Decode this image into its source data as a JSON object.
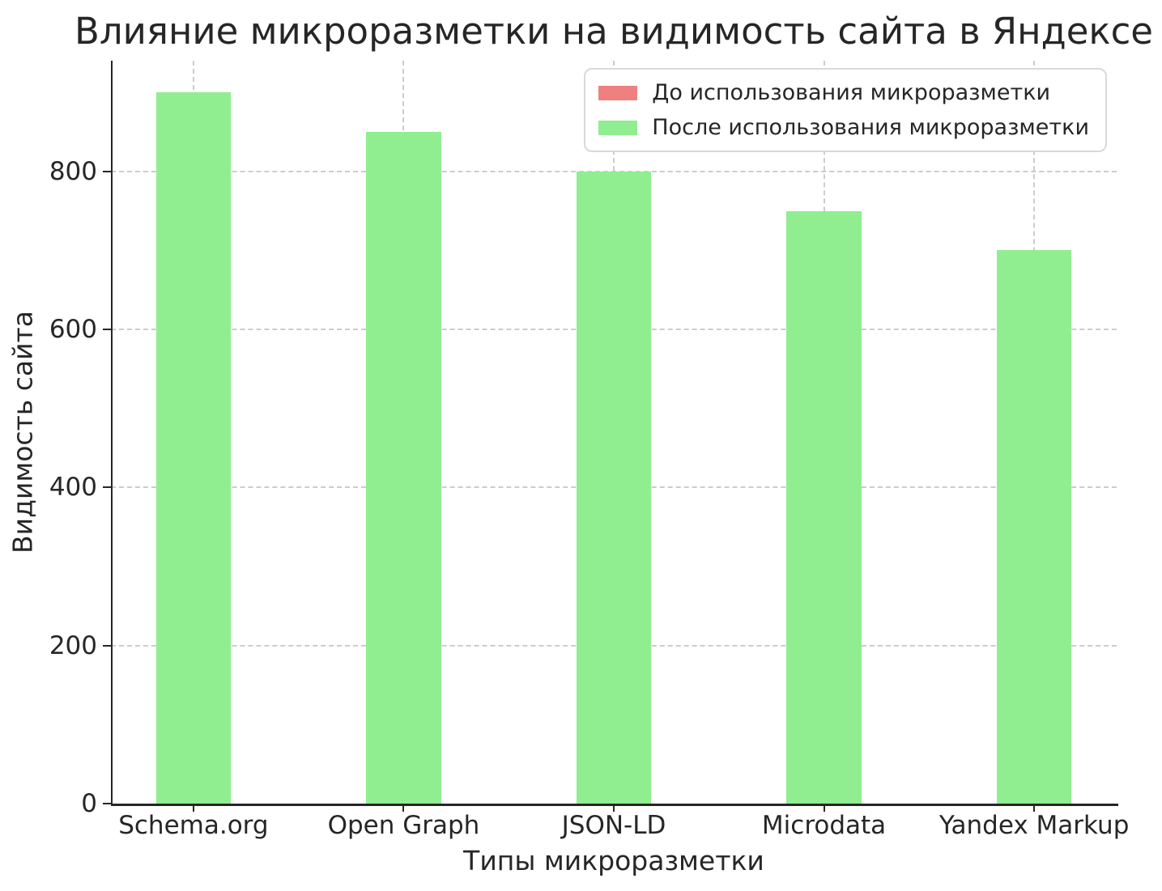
{
  "chart_data": {
    "type": "bar",
    "title": "Влияние микроразметки на видимость сайта в Яндексе",
    "xlabel": "Типы микроразметки",
    "ylabel": "Видимость сайта",
    "categories": [
      "Schema.org",
      "Open Graph",
      "JSON-LD",
      "Microdata",
      "Yandex Markup"
    ],
    "series": [
      {
        "name": "До использования микроразметки",
        "color": "#f08080",
        "values": [
          null,
          null,
          null,
          null,
          null
        ],
        "bars_visible": false,
        "note": "bars fully hidden behind the second series in the rendered image; only the legend swatch is visible"
      },
      {
        "name": "После использования микроразметки",
        "color": "#90ee90",
        "values": [
          900,
          850,
          800,
          750,
          700
        ],
        "bars_visible": true
      }
    ],
    "yticks": [
      0,
      200,
      400,
      600,
      800
    ],
    "ylim": [
      0,
      940
    ],
    "grid": {
      "visible": true,
      "style": "dashed",
      "color": "#cccccc",
      "axes": "both"
    },
    "legend_position": "upper right",
    "colors": {
      "text": "#262626",
      "spine": "#262626",
      "grid": "#cccccc",
      "legend_border": "#d9d9d9",
      "background": "#ffffff"
    }
  }
}
